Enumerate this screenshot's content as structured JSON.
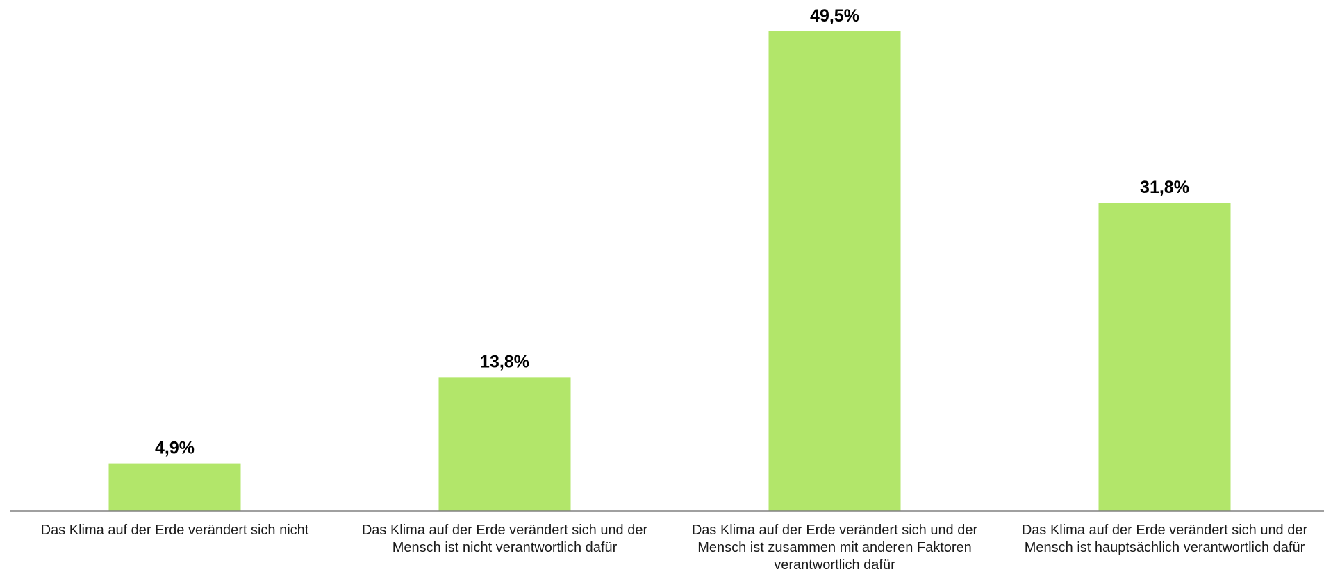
{
  "chart_data": {
    "type": "bar",
    "title": "",
    "xlabel": "",
    "ylabel": "",
    "ylim": [
      0,
      50
    ],
    "grid": false,
    "legend": "none",
    "bar_color": "#b2e66a",
    "axis_color": "#808080",
    "categories": [
      "Das Klima auf der Erde verändert sich nicht",
      "Das Klima auf der Erde verändert sich und der Mensch ist nicht verantwortlich dafür",
      "Das Klima auf der Erde verändert sich und der Mensch ist zusammen mit anderen Faktoren verantwortlich dafür",
      "Das Klima auf der Erde verändert sich und der Mensch ist hauptsächlich verantwortlich dafür"
    ],
    "values": [
      4.9,
      13.8,
      49.5,
      31.8
    ],
    "value_labels": [
      "4,9%",
      "13,8%",
      "49,5%",
      "31,8%"
    ]
  }
}
